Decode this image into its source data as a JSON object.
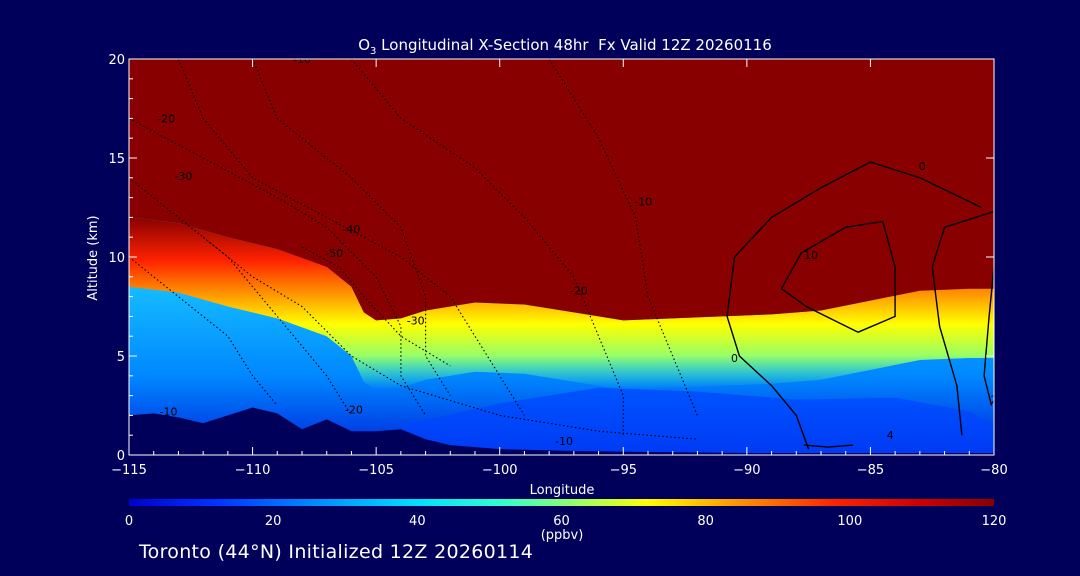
{
  "chart_data": {
    "type": "contour",
    "title_prefix": "O",
    "title_subscript": "3",
    "title_rest": " Longitudinal X-Section 48hr  Fx Valid 12Z 20260116",
    "xlabel": "Longitude",
    "ylabel": "Altitude (km)",
    "xlim": [
      -115,
      -80
    ],
    "ylim": [
      0,
      20
    ],
    "x_ticks": [
      -115,
      -110,
      -105,
      -100,
      -95,
      -90,
      -85,
      -80
    ],
    "x_tick_labels": [
      "−115",
      "−110",
      "−105",
      "−100",
      "−95",
      "−90",
      "−85",
      "−80"
    ],
    "y_ticks": [
      0,
      5,
      10,
      15,
      20
    ],
    "y_tick_labels": [
      "0",
      "5",
      "10",
      "15",
      "20"
    ],
    "field_unit": "ppbv",
    "colorbar": {
      "min": 0,
      "max": 120,
      "ticks": [
        0,
        20,
        40,
        60,
        80,
        100,
        120
      ],
      "tick_labels": [
        "0",
        "20",
        "40",
        "60",
        "80",
        "100",
        "120"
      ],
      "label": "(ppbv)",
      "stops": [
        {
          "value": 0,
          "color": "#0000cc"
        },
        {
          "value": 12,
          "color": "#0033ff"
        },
        {
          "value": 28,
          "color": "#0099ff"
        },
        {
          "value": 40,
          "color": "#00e0ff"
        },
        {
          "value": 52,
          "color": "#33ffcc"
        },
        {
          "value": 62,
          "color": "#99ff66"
        },
        {
          "value": 72,
          "color": "#ffff00"
        },
        {
          "value": 84,
          "color": "#ff9900"
        },
        {
          "value": 98,
          "color": "#ff2200"
        },
        {
          "value": 110,
          "color": "#cc0000"
        },
        {
          "value": 120,
          "color": "#880000"
        }
      ]
    },
    "tropopause_profile": {
      "lon": [
        -115,
        -113,
        -111,
        -109,
        -107,
        -106,
        -105.5,
        -105,
        -104,
        -103,
        -101,
        -99,
        -97,
        -95,
        -93,
        -91,
        -89,
        -87,
        -85,
        -83,
        -81,
        -80
      ],
      "alt_km": [
        12.0,
        11.7,
        11.0,
        10.4,
        9.5,
        8.5,
        7.2,
        6.8,
        6.9,
        7.3,
        7.7,
        7.6,
        7.2,
        6.8,
        6.9,
        7.0,
        7.1,
        7.3,
        7.8,
        8.3,
        8.4,
        8.4
      ]
    },
    "terrain": {
      "lon": [
        -115,
        -114,
        -113,
        -112,
        -111,
        -110,
        -109,
        -108,
        -107,
        -106,
        -105,
        -104,
        -103,
        -102,
        -100,
        -97,
        -94,
        -90,
        -86,
        -82,
        -80
      ],
      "alt_km": [
        2.0,
        2.1,
        1.9,
        1.6,
        2.0,
        2.4,
        2.1,
        1.3,
        1.8,
        1.2,
        1.2,
        1.3,
        0.8,
        0.5,
        0.3,
        0.2,
        0.15,
        0.1,
        0.1,
        0.1,
        0.1
      ]
    },
    "contour_labels": [
      {
        "text": "-10",
        "lon": -108,
        "alt": 19.8
      },
      {
        "text": "-20",
        "lon": -113.5,
        "alt": 16.8
      },
      {
        "text": "-30",
        "lon": -112.8,
        "alt": 13.9
      },
      {
        "text": "-40",
        "lon": -106,
        "alt": 11.2
      },
      {
        "text": "-50",
        "lon": -106.7,
        "alt": 10.0
      },
      {
        "text": "-20",
        "lon": -96.8,
        "alt": 8.1
      },
      {
        "text": "-30",
        "lon": -103.4,
        "alt": 6.6
      },
      {
        "text": "-10",
        "lon": -94.2,
        "alt": 12.6
      },
      {
        "text": "-10",
        "lon": -113.4,
        "alt": 2.0
      },
      {
        "text": "-20",
        "lon": -105.9,
        "alt": 2.1
      },
      {
        "text": "-10",
        "lon": -97.4,
        "alt": 0.5
      },
      {
        "text": "0",
        "lon": -82.9,
        "alt": 14.4
      },
      {
        "text": "0",
        "lon": -90.5,
        "alt": 4.7
      },
      {
        "text": "10",
        "lon": -87.4,
        "alt": 9.9
      },
      {
        "text": "4",
        "lon": -84.2,
        "alt": 0.8
      },
      {
        "text": "2",
        "lon": -80,
        "alt": 2.6
      }
    ]
  },
  "footer": {
    "text": "Toronto (44°N) Initialized 12Z 20260114"
  }
}
